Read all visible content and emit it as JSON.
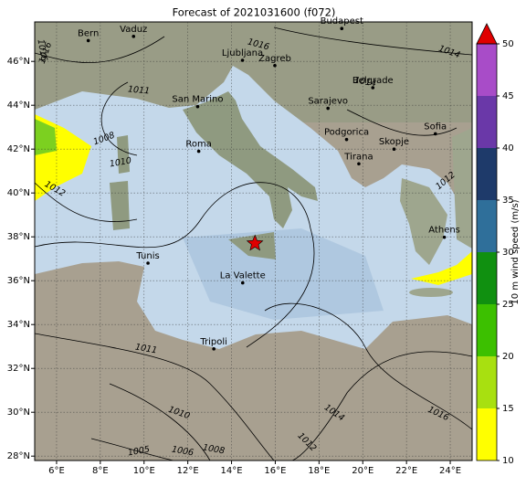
{
  "map": {
    "title": "Forecast of 2021031600 (f072)",
    "xlim": [
      5,
      25
    ],
    "ylim": [
      27.8,
      47.8
    ],
    "xticks": [
      {
        "value": 6,
        "label": "6°E"
      },
      {
        "value": 8,
        "label": "8°E"
      },
      {
        "value": 10,
        "label": "10°E"
      },
      {
        "value": 12,
        "label": "12°E"
      },
      {
        "value": 14,
        "label": "14°E"
      },
      {
        "value": 16,
        "label": "16°E"
      },
      {
        "value": 18,
        "label": "18°E"
      },
      {
        "value": 20,
        "label": "20°E"
      },
      {
        "value": 22,
        "label": "22°E"
      },
      {
        "value": 24,
        "label": "24°E"
      }
    ],
    "yticks": [
      {
        "value": 28,
        "label": "28°N"
      },
      {
        "value": 30,
        "label": "30°N"
      },
      {
        "value": 32,
        "label": "32°N"
      },
      {
        "value": 34,
        "label": "34°N"
      },
      {
        "value": 36,
        "label": "36°N"
      },
      {
        "value": 38,
        "label": "38°N"
      },
      {
        "value": 40,
        "label": "40°N"
      },
      {
        "value": 42,
        "label": "42°N"
      },
      {
        "value": 44,
        "label": "44°N"
      },
      {
        "value": 46,
        "label": "46°N"
      }
    ],
    "cities": [
      {
        "name": "Bern",
        "lon": 7.45,
        "lat": 46.95
      },
      {
        "name": "Vaduz",
        "lon": 9.52,
        "lat": 47.14
      },
      {
        "name": "Budapest",
        "lon": 19.04,
        "lat": 47.5
      },
      {
        "name": "Ljubljana",
        "lon": 14.5,
        "lat": 46.05
      },
      {
        "name": "Zagreb",
        "lon": 15.98,
        "lat": 45.81
      },
      {
        "name": "Belgrade",
        "lon": 20.46,
        "lat": 44.8
      },
      {
        "name": "San Marino",
        "lon": 12.45,
        "lat": 43.94
      },
      {
        "name": "Sarajevo",
        "lon": 18.41,
        "lat": 43.86
      },
      {
        "name": "Sofia",
        "lon": 23.32,
        "lat": 42.7
      },
      {
        "name": "Podgorica",
        "lon": 19.26,
        "lat": 42.44
      },
      {
        "name": "Skopje",
        "lon": 21.43,
        "lat": 42.0
      },
      {
        "name": "Roma",
        "lon": 12.5,
        "lat": 41.9
      },
      {
        "name": "Tirana",
        "lon": 19.82,
        "lat": 41.33
      },
      {
        "name": "Athens",
        "lon": 23.73,
        "lat": 37.98
      },
      {
        "name": "Tunis",
        "lon": 10.18,
        "lat": 36.8
      },
      {
        "name": "La Valette",
        "lon": 14.51,
        "lat": 35.9
      },
      {
        "name": "Tripoli",
        "lon": 13.19,
        "lat": 32.89
      }
    ],
    "marker": {
      "lon": 15.07,
      "lat": 37.7,
      "color": "#e00000"
    },
    "isobar_labels": [
      "1016",
      "1014",
      "1011",
      "1008",
      "1010",
      "1012",
      "1016",
      "1014",
      "1016",
      "1012",
      "1011",
      "1010",
      "1006",
      "1008",
      "1005",
      "1014",
      "1016",
      "1012"
    ],
    "colorbar": {
      "label": "10 m wind speed (m/s)",
      "lim": [
        10,
        50
      ],
      "ticks": [
        10,
        15,
        20,
        25,
        30,
        35,
        40,
        45,
        50
      ],
      "colors": [
        "#ffff00",
        "#a8e010",
        "#3cc000",
        "#109010",
        "#2f6f9a",
        "#1e3a6a",
        "#6a38a8",
        "#a84cc8"
      ],
      "extend_color": "#e00000"
    }
  }
}
